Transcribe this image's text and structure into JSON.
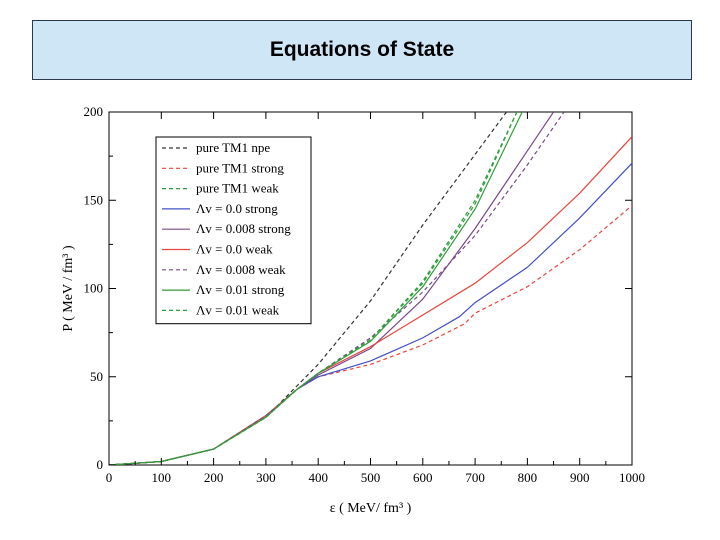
{
  "slide": {
    "title": "Equations of State"
  },
  "chart_data": {
    "type": "line",
    "title": "",
    "xlabel": "ε ( MeV/ fm³ )",
    "ylabel": "P ( MeV / fm³ )",
    "xlim": [
      0,
      1000
    ],
    "ylim": [
      0,
      200
    ],
    "xticks": [
      0,
      100,
      200,
      300,
      400,
      500,
      600,
      700,
      800,
      900,
      1000
    ],
    "yticks": [
      0,
      50,
      100,
      150,
      200
    ],
    "grid": false,
    "legend_position": "top-left",
    "series": [
      {
        "name": "pure TM1 npe",
        "color": "#333333",
        "dash": true,
        "x": [
          0,
          100,
          200,
          300,
          340,
          400,
          500,
          600,
          700,
          760
        ],
        "y": [
          0,
          2,
          9,
          27,
          39,
          57,
          93,
          136,
          176,
          200
        ]
      },
      {
        "name": "pure  TM1 strong",
        "color": "#e8463c",
        "dash": true,
        "x": [
          0,
          100,
          200,
          300,
          360,
          400,
          500,
          600,
          680,
          700,
          800,
          900,
          1000
        ],
        "y": [
          0,
          2,
          9,
          28,
          43,
          50,
          57,
          68,
          80,
          86,
          101,
          122,
          147
        ]
      },
      {
        "name": "pure TM1 weak",
        "color": "#2e9e3a",
        "dash": true,
        "x": [
          0,
          100,
          200,
          300,
          360,
          400,
          500,
          600,
          700,
          780
        ],
        "y": [
          0,
          2,
          9,
          27,
          43,
          52,
          71,
          104,
          150,
          200
        ]
      },
      {
        "name": "Λv = 0.0 strong",
        "color": "#4450c8",
        "dash": false,
        "x": [
          0,
          100,
          200,
          300,
          360,
          400,
          500,
          600,
          670,
          700,
          800,
          900,
          1000
        ],
        "y": [
          0,
          2,
          9,
          28,
          43,
          50,
          59,
          72,
          84,
          92,
          112,
          140,
          171
        ]
      },
      {
        "name": "Λv = 0.008 strong",
        "color": "#7a4a8a",
        "dash": false,
        "x": [
          0,
          100,
          200,
          300,
          360,
          400,
          500,
          600,
          700,
          800,
          850
        ],
        "y": [
          0,
          2,
          9,
          28,
          43,
          51,
          66,
          94,
          134,
          178,
          200
        ]
      },
      {
        "name": "Λv = 0.0 weak",
        "color": "#e8463c",
        "dash": false,
        "x": [
          0,
          100,
          200,
          300,
          360,
          400,
          500,
          600,
          700,
          800,
          900,
          1000
        ],
        "y": [
          0,
          2,
          9,
          28,
          43,
          52,
          67,
          85,
          103,
          126,
          154,
          186
        ]
      },
      {
        "name": "Λv = 0.008 weak",
        "color": "#7a4a8a",
        "dash": true,
        "x": [
          0,
          100,
          200,
          300,
          360,
          400,
          500,
          600,
          700,
          800,
          870
        ],
        "y": [
          0,
          2,
          9,
          28,
          43,
          52,
          72,
          98,
          130,
          170,
          200
        ]
      },
      {
        "name": "Λv = 0.01 strong",
        "color": "#2e9e3a",
        "dash": false,
        "x": [
          0,
          100,
          200,
          300,
          360,
          400,
          500,
          600,
          700,
          790
        ],
        "y": [
          0,
          2,
          9,
          27,
          43,
          52,
          70,
          101,
          145,
          200
        ]
      },
      {
        "name": "Λv = 0.01 weak",
        "color": "#2e9e3a",
        "dash": true,
        "x": [
          0,
          100,
          200,
          300,
          360,
          400,
          500,
          600,
          700,
          780
        ],
        "y": [
          0,
          2,
          9,
          27,
          43,
          52,
          71,
          103,
          148,
          200
        ]
      }
    ]
  }
}
